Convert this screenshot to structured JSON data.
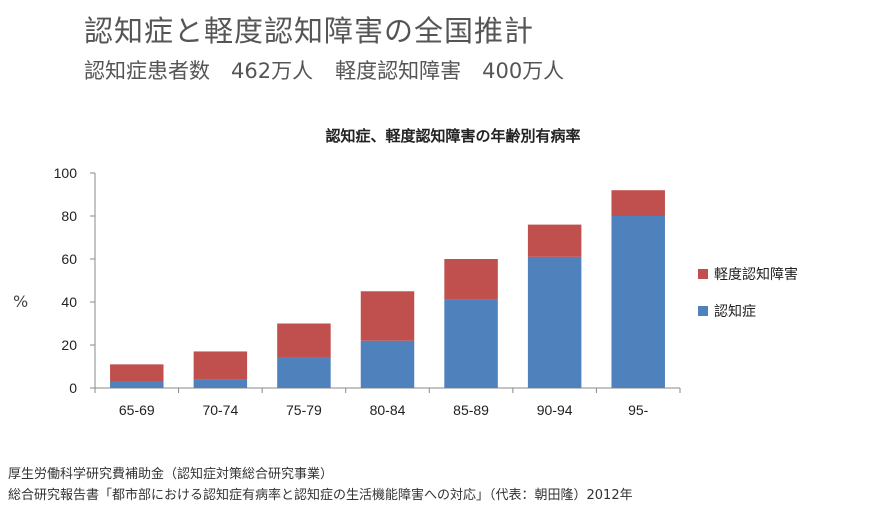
{
  "header": {
    "title": "認知症と軽度認知障害の全国推計",
    "subtitle_dementia": "認知症患者数　462万人",
    "subtitle_mci": "軽度認知障害　400万人"
  },
  "chart_data": {
    "type": "bar",
    "stacked": true,
    "title": "認知症、軽度認知障害の年齢別有病率",
    "xlabel": "",
    "ylabel": "%",
    "ylim": [
      0,
      100
    ],
    "yticks": [
      0,
      20,
      40,
      60,
      80,
      100
    ],
    "grid": false,
    "legend_position": "right",
    "categories": [
      "65-69",
      "70-74",
      "75-79",
      "80-84",
      "85-89",
      "90-94",
      "95-"
    ],
    "series": [
      {
        "name": "認知症",
        "color": "#4f81bd",
        "values": [
          3,
          4,
          14,
          22,
          41,
          61,
          80
        ]
      },
      {
        "name": "軽度認知障害",
        "color": "#c0504d",
        "values": [
          8,
          13,
          16,
          23,
          19,
          15,
          12
        ]
      }
    ]
  },
  "source": {
    "line1": "厚生労働科学研究費補助金（認知症対策総合研究事業）",
    "line2": "総合研究報告書「都市部における認知症有病率と認知症の生活機能障害への対応」（代表：朝田隆）2012年"
  }
}
